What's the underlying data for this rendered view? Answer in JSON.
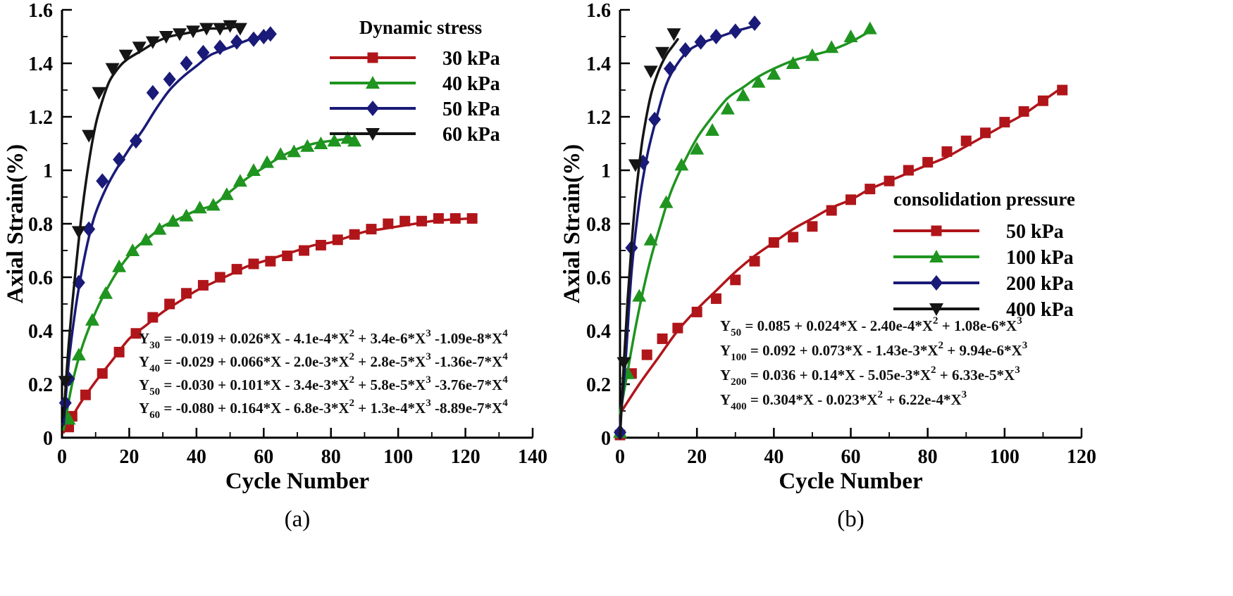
{
  "page": {
    "background": "#ffffff"
  },
  "chart_data": [
    {
      "type": "line-scatter",
      "caption": "(a)",
      "xlabel": "Cycle Number",
      "ylabel": "Axial Strain(%)",
      "xlim": [
        0,
        140
      ],
      "ylim": [
        0,
        1.6
      ],
      "x_major": 20,
      "x_minor": 10,
      "y_major": 0.2,
      "y_minor": 0.1,
      "x_tick_labels": [
        "0",
        "20",
        "40",
        "60",
        "80",
        "100",
        "120",
        "140"
      ],
      "y_tick_labels": [
        "0",
        "0.2",
        "0.4",
        "0.6",
        "0.8",
        "1",
        "1.2",
        "1.4",
        "1.6"
      ],
      "grid": false,
      "legend": {
        "title": "Dynamic stress",
        "position": "top-right"
      },
      "series": [
        {
          "name": "30 kPa",
          "color": "#B0151A",
          "marker": "square",
          "markers": {
            "x": [
              2,
              3,
              7,
              12,
              17,
              22,
              27,
              32,
              37,
              42,
              47,
              52,
              57,
              62,
              67,
              72,
              77,
              82,
              87,
              92,
              97,
              102,
              107,
              112,
              117,
              122
            ],
            "y": [
              0.04,
              0.08,
              0.16,
              0.24,
              0.32,
              0.39,
              0.45,
              0.5,
              0.54,
              0.57,
              0.6,
              0.63,
              0.65,
              0.66,
              0.68,
              0.7,
              0.72,
              0.74,
              0.76,
              0.78,
              0.8,
              0.81,
              0.81,
              0.82,
              0.82,
              0.82
            ]
          },
          "line": {
            "x": [
              0.5,
              5,
              10,
              15,
              20,
              25,
              30,
              35,
              40,
              45,
              50,
              55,
              60,
              65,
              70,
              75,
              80,
              85,
              90,
              95,
              100,
              105,
              110,
              115,
              122
            ],
            "y": [
              0.02,
              0.12,
              0.21,
              0.29,
              0.37,
              0.42,
              0.47,
              0.51,
              0.55,
              0.58,
              0.61,
              0.64,
              0.66,
              0.68,
              0.7,
              0.72,
              0.73,
              0.75,
              0.77,
              0.78,
              0.79,
              0.8,
              0.81,
              0.815,
              0.82
            ]
          }
        },
        {
          "name": "40 kPa",
          "color": "#1F941F",
          "marker": "triangle-up",
          "markers": {
            "x": [
              2,
              5,
              9,
              13,
              17,
              21,
              25,
              29,
              33,
              37,
              41,
              45,
              49,
              53,
              57,
              61,
              65,
              69,
              73,
              77,
              81,
              85,
              87
            ],
            "y": [
              0.07,
              0.31,
              0.44,
              0.54,
              0.64,
              0.7,
              0.74,
              0.78,
              0.81,
              0.83,
              0.86,
              0.87,
              0.91,
              0.96,
              1.0,
              1.03,
              1.06,
              1.07,
              1.09,
              1.1,
              1.11,
              1.12,
              1.11
            ]
          },
          "line": {
            "x": [
              0.5,
              3,
              6,
              10,
              14,
              18,
              22,
              26,
              30,
              35,
              40,
              45,
              50,
              55,
              60,
              65,
              70,
              75,
              80,
              87
            ],
            "y": [
              0.03,
              0.2,
              0.34,
              0.47,
              0.57,
              0.65,
              0.71,
              0.75,
              0.79,
              0.82,
              0.85,
              0.87,
              0.92,
              0.97,
              1.01,
              1.05,
              1.08,
              1.1,
              1.11,
              1.12
            ]
          }
        },
        {
          "name": "50 kPa",
          "color": "#1A1A78",
          "marker": "diamond",
          "markers": {
            "x": [
              1,
              2,
              5,
              8,
              12,
              17,
              22,
              27,
              32,
              37,
              42,
              47,
              52,
              57,
              60,
              62
            ],
            "y": [
              0.13,
              0.22,
              0.58,
              0.78,
              0.96,
              1.04,
              1.11,
              1.29,
              1.34,
              1.4,
              1.44,
              1.46,
              1.48,
              1.49,
              1.5,
              1.51
            ]
          },
          "line": {
            "x": [
              0.5,
              2,
              4,
              6,
              8,
              10,
              13,
              16,
              20,
              24,
              28,
              32,
              36,
              40,
              44,
              48,
              52,
              56,
              62
            ],
            "y": [
              0.05,
              0.28,
              0.48,
              0.63,
              0.75,
              0.84,
              0.93,
              1.0,
              1.08,
              1.15,
              1.23,
              1.3,
              1.35,
              1.39,
              1.43,
              1.45,
              1.47,
              1.49,
              1.51
            ]
          }
        },
        {
          "name": "60 kPa",
          "color": "#151515",
          "marker": "triangle-down",
          "markers": {
            "x": [
              1,
              5,
              8,
              11,
              15,
              19,
              23,
              27,
              31,
              35,
              39,
              43,
              47,
              50,
              53
            ],
            "y": [
              0.21,
              0.77,
              1.13,
              1.29,
              1.38,
              1.43,
              1.46,
              1.48,
              1.5,
              1.51,
              1.52,
              1.53,
              1.53,
              1.54,
              1.53
            ]
          },
          "line": {
            "x": [
              0.5,
              2,
              4,
              6,
              8,
              10,
              12,
              14,
              16,
              18,
              20,
              24,
              28,
              32,
              36,
              40,
              44,
              48,
              53
            ],
            "y": [
              0.08,
              0.35,
              0.62,
              0.85,
              1.03,
              1.17,
              1.26,
              1.33,
              1.37,
              1.4,
              1.42,
              1.45,
              1.48,
              1.5,
              1.51,
              1.52,
              1.53,
              1.53,
              1.54
            ]
          }
        }
      ],
      "equations": [
        "Y_{30} = -0.019 + 0.026*X - 4.1e-4*X^{2} + 3.4e-6*X^{3} -1.09e-8*X^{4}",
        "Y_{40} = -0.029 + 0.066*X - 2.0e-3*X^{2} + 2.8e-5*X^{3} -1.36e-7*X^{4}",
        "Y_{50} = -0.030 + 0.101*X - 3.4e-3*X^{2} + 5.8e-5*X^{3} -3.76e-7*X^{4}",
        "Y_{60} = -0.080 + 0.164*X - 6.8e-3*X^{2} + 1.3e-4*X^{3} -8.89e-7*X^{4}"
      ]
    },
    {
      "type": "line-scatter",
      "caption": "(b)",
      "xlabel": "Cycle Number",
      "ylabel": "Axial Strain(%)",
      "xlim": [
        0,
        120
      ],
      "ylim": [
        0,
        1.6
      ],
      "x_major": 20,
      "x_minor": 10,
      "y_major": 0.2,
      "y_minor": 0.1,
      "x_tick_labels": [
        "0",
        "20",
        "40",
        "60",
        "80",
        "100",
        "120"
      ],
      "y_tick_labels": [
        "0",
        "0.2",
        "0.4",
        "0.6",
        "0.8",
        "1",
        "1.2",
        "1.4",
        "1.6"
      ],
      "grid": false,
      "legend": {
        "title": "consolidation pressure",
        "position": "middle-right"
      },
      "series": [
        {
          "name": "50 kPa",
          "color": "#B0151A",
          "marker": "square",
          "markers": {
            "x": [
              0,
              3,
              7,
              11,
              15,
              20,
              25,
              30,
              35,
              40,
              45,
              50,
              55,
              60,
              65,
              70,
              75,
              80,
              85,
              90,
              95,
              100,
              105,
              110,
              115
            ],
            "y": [
              0.01,
              0.24,
              0.31,
              0.37,
              0.41,
              0.47,
              0.52,
              0.59,
              0.66,
              0.73,
              0.75,
              0.79,
              0.85,
              0.89,
              0.93,
              0.96,
              1.0,
              1.03,
              1.07,
              1.11,
              1.14,
              1.18,
              1.22,
              1.26,
              1.3
            ]
          },
          "line": {
            "x": [
              0,
              5,
              10,
              15,
              20,
              25,
              30,
              35,
              40,
              45,
              50,
              55,
              60,
              65,
              70,
              75,
              80,
              85,
              90,
              95,
              100,
              105,
              110,
              115
            ],
            "y": [
              0.09,
              0.2,
              0.3,
              0.4,
              0.48,
              0.55,
              0.62,
              0.68,
              0.73,
              0.78,
              0.82,
              0.86,
              0.89,
              0.93,
              0.96,
              0.99,
              1.02,
              1.05,
              1.09,
              1.13,
              1.17,
              1.21,
              1.26,
              1.31
            ]
          }
        },
        {
          "name": "100 kPa",
          "color": "#1F941F",
          "marker": "triangle-up",
          "markers": {
            "x": [
              0,
              2,
              5,
              8,
              12,
              16,
              20,
              24,
              28,
              32,
              36,
              40,
              45,
              50,
              55,
              60,
              65
            ],
            "y": [
              0.02,
              0.24,
              0.53,
              0.74,
              0.88,
              1.02,
              1.08,
              1.15,
              1.23,
              1.28,
              1.33,
              1.36,
              1.4,
              1.43,
              1.46,
              1.5,
              1.53
            ]
          },
          "line": {
            "x": [
              0,
              2,
              4,
              6,
              8,
              10,
              13,
              16,
              20,
              24,
              28,
              32,
              36,
              40,
              45,
              50,
              55,
              60,
              65
            ],
            "y": [
              0.09,
              0.25,
              0.41,
              0.55,
              0.67,
              0.77,
              0.91,
              1.01,
              1.12,
              1.2,
              1.27,
              1.31,
              1.35,
              1.38,
              1.41,
              1.43,
              1.45,
              1.48,
              1.52
            ]
          }
        },
        {
          "name": "200 kPa",
          "color": "#1A1A78",
          "marker": "diamond",
          "markers": {
            "x": [
              0,
              3,
              6,
              9,
              13,
              17,
              21,
              25,
              30,
              35
            ],
            "y": [
              0.02,
              0.71,
              1.03,
              1.19,
              1.38,
              1.45,
              1.48,
              1.5,
              1.52,
              1.55
            ]
          },
          "line": {
            "x": [
              0,
              1.5,
              3,
              5,
              7,
              9,
              12,
              15,
              18,
              22,
              26,
              30,
              35
            ],
            "y": [
              0.04,
              0.3,
              0.62,
              0.88,
              1.05,
              1.17,
              1.32,
              1.4,
              1.45,
              1.48,
              1.5,
              1.52,
              1.54
            ]
          }
        },
        {
          "name": "400 kPa",
          "color": "#151515",
          "marker": "triangle-down",
          "markers": {
            "x": [
              1,
              4,
              8,
              11,
              14
            ],
            "y": [
              0.28,
              1.02,
              1.37,
              1.44,
              1.51
            ]
          },
          "line": {
            "x": [
              0,
              1,
              2,
              3,
              4,
              5,
              6,
              8,
              10,
              12,
              14,
              15
            ],
            "y": [
              0.0,
              0.28,
              0.52,
              0.72,
              0.89,
              1.02,
              1.13,
              1.28,
              1.37,
              1.43,
              1.47,
              1.49
            ]
          }
        }
      ],
      "equations": [
        "Y_{50} = 0.085 + 0.024*X - 2.40e-4*X^{2} + 1.08e-6*X^{3}",
        "Y_{100} = 0.092 + 0.073*X - 1.43e-3*X^{2} + 9.94e-6*X^{3}",
        "Y_{200} = 0.036 + 0.14*X - 5.05e-3*X^{2} + 6.33e-5*X^{3}",
        "Y_{400} = 0.304*X - 0.023*X^{2} + 6.22e-4*X^{3}"
      ]
    }
  ]
}
